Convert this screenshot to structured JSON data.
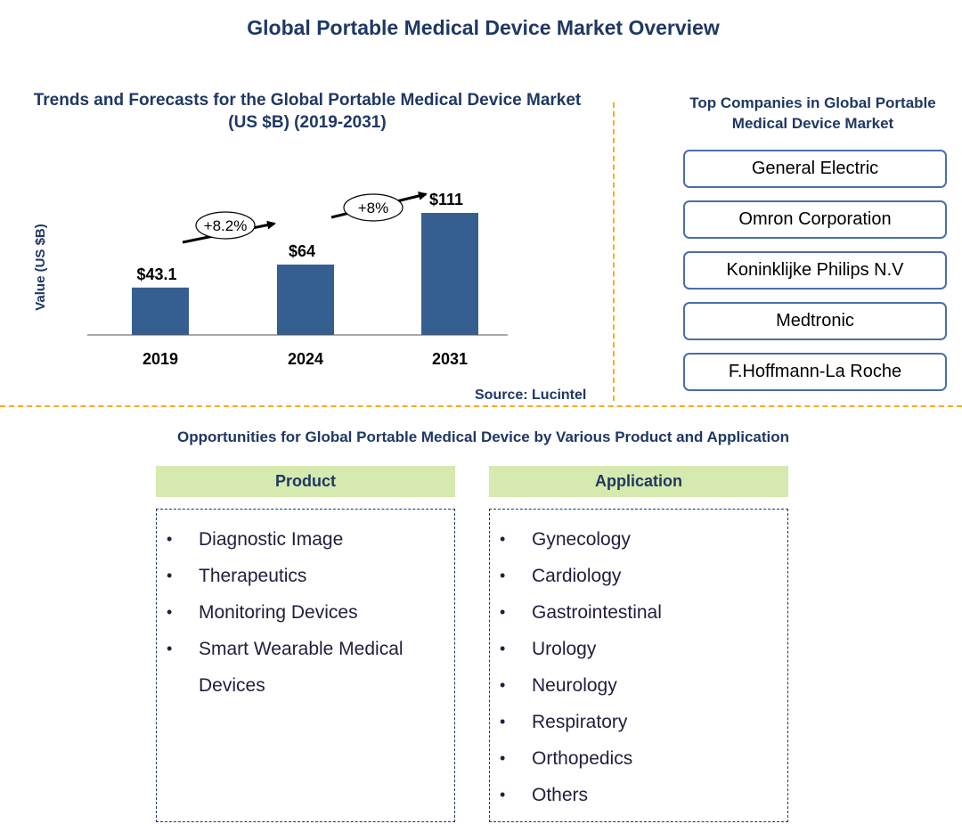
{
  "title": "Global Portable Medical Device Market Overview",
  "chart_data": {
    "type": "bar",
    "title": "Trends and Forecasts for the Global Portable Medical Device Market (US $B) (2019-2031)",
    "ylabel": "Value (US $B)",
    "xlabel": "",
    "categories": [
      "2019",
      "2024",
      "2031"
    ],
    "values": [
      43.1,
      64,
      111
    ],
    "value_labels": [
      "$43.1",
      "$64",
      "$111"
    ],
    "ylim": [
      0,
      111
    ],
    "bar_color": "#365f91",
    "growth_annotations": [
      {
        "from": "2019",
        "to": "2024",
        "label": "+8.2%"
      },
      {
        "from": "2024",
        "to": "2031",
        "label": "+8%"
      }
    ],
    "grid": false,
    "source": "Source: Lucintel"
  },
  "companies": {
    "title": "Top Companies in Global Portable Medical Device Market",
    "items": [
      "General Electric",
      "Omron Corporation",
      "Koninklijke Philips N.V",
      "Medtronic",
      "F.Hoffmann-La Roche"
    ]
  },
  "opportunities": {
    "title": "Opportunities for Global Portable Medical Device by Various Product and Application",
    "product": {
      "header": "Product",
      "items": [
        "Diagnostic Image",
        "Therapeutics",
        "Monitoring Devices",
        "Smart Wearable Medical Devices"
      ]
    },
    "application": {
      "header": "Application",
      "items": [
        "Gynecology",
        "Cardiology",
        "Gastrointestinal",
        "Urology",
        "Neurology",
        "Respiratory",
        "Orthopedics",
        "Others"
      ]
    },
    "bullet": "•"
  },
  "colors": {
    "title_navy": "#1f3864",
    "bar": "#365f91",
    "divider": "#f2b01e",
    "header_green": "#d6e9ae",
    "box_border": "#4b6fa5"
  }
}
